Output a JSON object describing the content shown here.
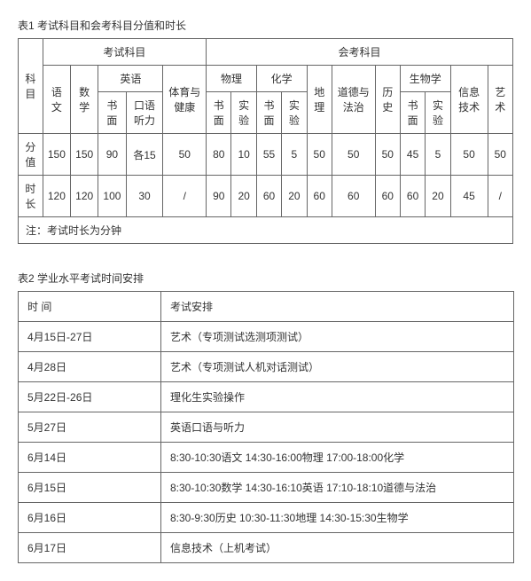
{
  "table1": {
    "title": "表1 考试科目和会考科目分值和时长",
    "head": {
      "kemu": "科目",
      "exam_group": "考试科目",
      "hui_group": "会考科目",
      "yuwen": "语文",
      "shuxue": "数学",
      "yingyu": "英语",
      "yy_shu": "书面",
      "yy_kouyu": "口语听力",
      "tiyu": "体育与健康",
      "wuli": "物理",
      "wl_shu": "书面",
      "wl_shiyan": "实验",
      "huaxue": "化学",
      "hx_shu": "书面",
      "hx_shiyan": "实验",
      "dili": "地理",
      "daode": "道德与法治",
      "lishi": "历史",
      "shengwu": "生物学",
      "sw_shu": "书面",
      "sw_shiyan": "实验",
      "xinxi": "信息技术",
      "yishu": "艺术"
    },
    "rows": {
      "fenzhi_label": "分值",
      "shichang_label": "时长",
      "fenzhi": [
        "150",
        "150",
        "90",
        "各15",
        "50",
        "80",
        "10",
        "55",
        "5",
        "50",
        "50",
        "50",
        "45",
        "5",
        "50",
        "50"
      ],
      "shichang": [
        "120",
        "120",
        "100",
        "30",
        "/",
        "90",
        "20",
        "60",
        "20",
        "60",
        "60",
        "60",
        "60",
        "20",
        "45",
        "/"
      ]
    },
    "note": "注：考试时长为分钟"
  },
  "table2": {
    "title": "表2 学业水平考试时间安排",
    "head": {
      "time": "时  间",
      "plan": "考试安排"
    },
    "rows": [
      {
        "time": "4月15日-27日",
        "plan": "艺术（专项测试选测项测试）"
      },
      {
        "time": "4月28日",
        "plan": "艺术（专项测试人机对话测试）"
      },
      {
        "time": "5月22日-26日",
        "plan": "理化生实验操作"
      },
      {
        "time": "5月27日",
        "plan": "英语口语与听力"
      },
      {
        "time": "6月14日",
        "plan": "8:30-10:30语文  14:30-16:00物理  17:00-18:00化学"
      },
      {
        "time": "6月15日",
        "plan": "8:30-10:30数学  14:30-16:10英语  17:10-18:10道德与法治"
      },
      {
        "time": "6月16日",
        "plan": "8:30-9:30历史   10:30-11:30地理  14:30-15:30生物学"
      },
      {
        "time": "6月17日",
        "plan": "信息技术（上机考试）"
      }
    ]
  }
}
